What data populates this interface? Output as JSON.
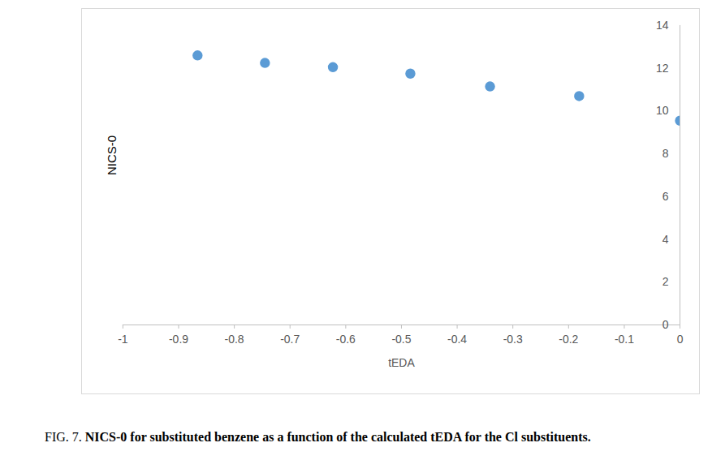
{
  "chart_data": {
    "type": "scatter",
    "figure_label": "FIG. 7.",
    "caption": "NICS-0 for substituted benzene as a function of the calculated tEDA for the Cl substituents.",
    "xlabel": "tEDA",
    "ylabel": "NICS-0",
    "x": [
      -0.866,
      -0.745,
      -0.623,
      -0.484,
      -0.341,
      -0.181,
      0
    ],
    "values": [
      12.6,
      12.25,
      12.05,
      11.75,
      11.15,
      10.7,
      9.55
    ],
    "color": "#5b9bd5",
    "marker": "circle",
    "xlim": [
      -1,
      0
    ],
    "xticks": [
      -1,
      -0.9,
      -0.8,
      -0.7,
      -0.6,
      -0.5,
      -0.4,
      -0.3,
      -0.2,
      -0.1,
      0
    ],
    "ylim": [
      0,
      14
    ],
    "yticks": [
      0,
      2,
      4,
      6,
      8,
      10,
      12,
      14
    ],
    "grid": false
  }
}
